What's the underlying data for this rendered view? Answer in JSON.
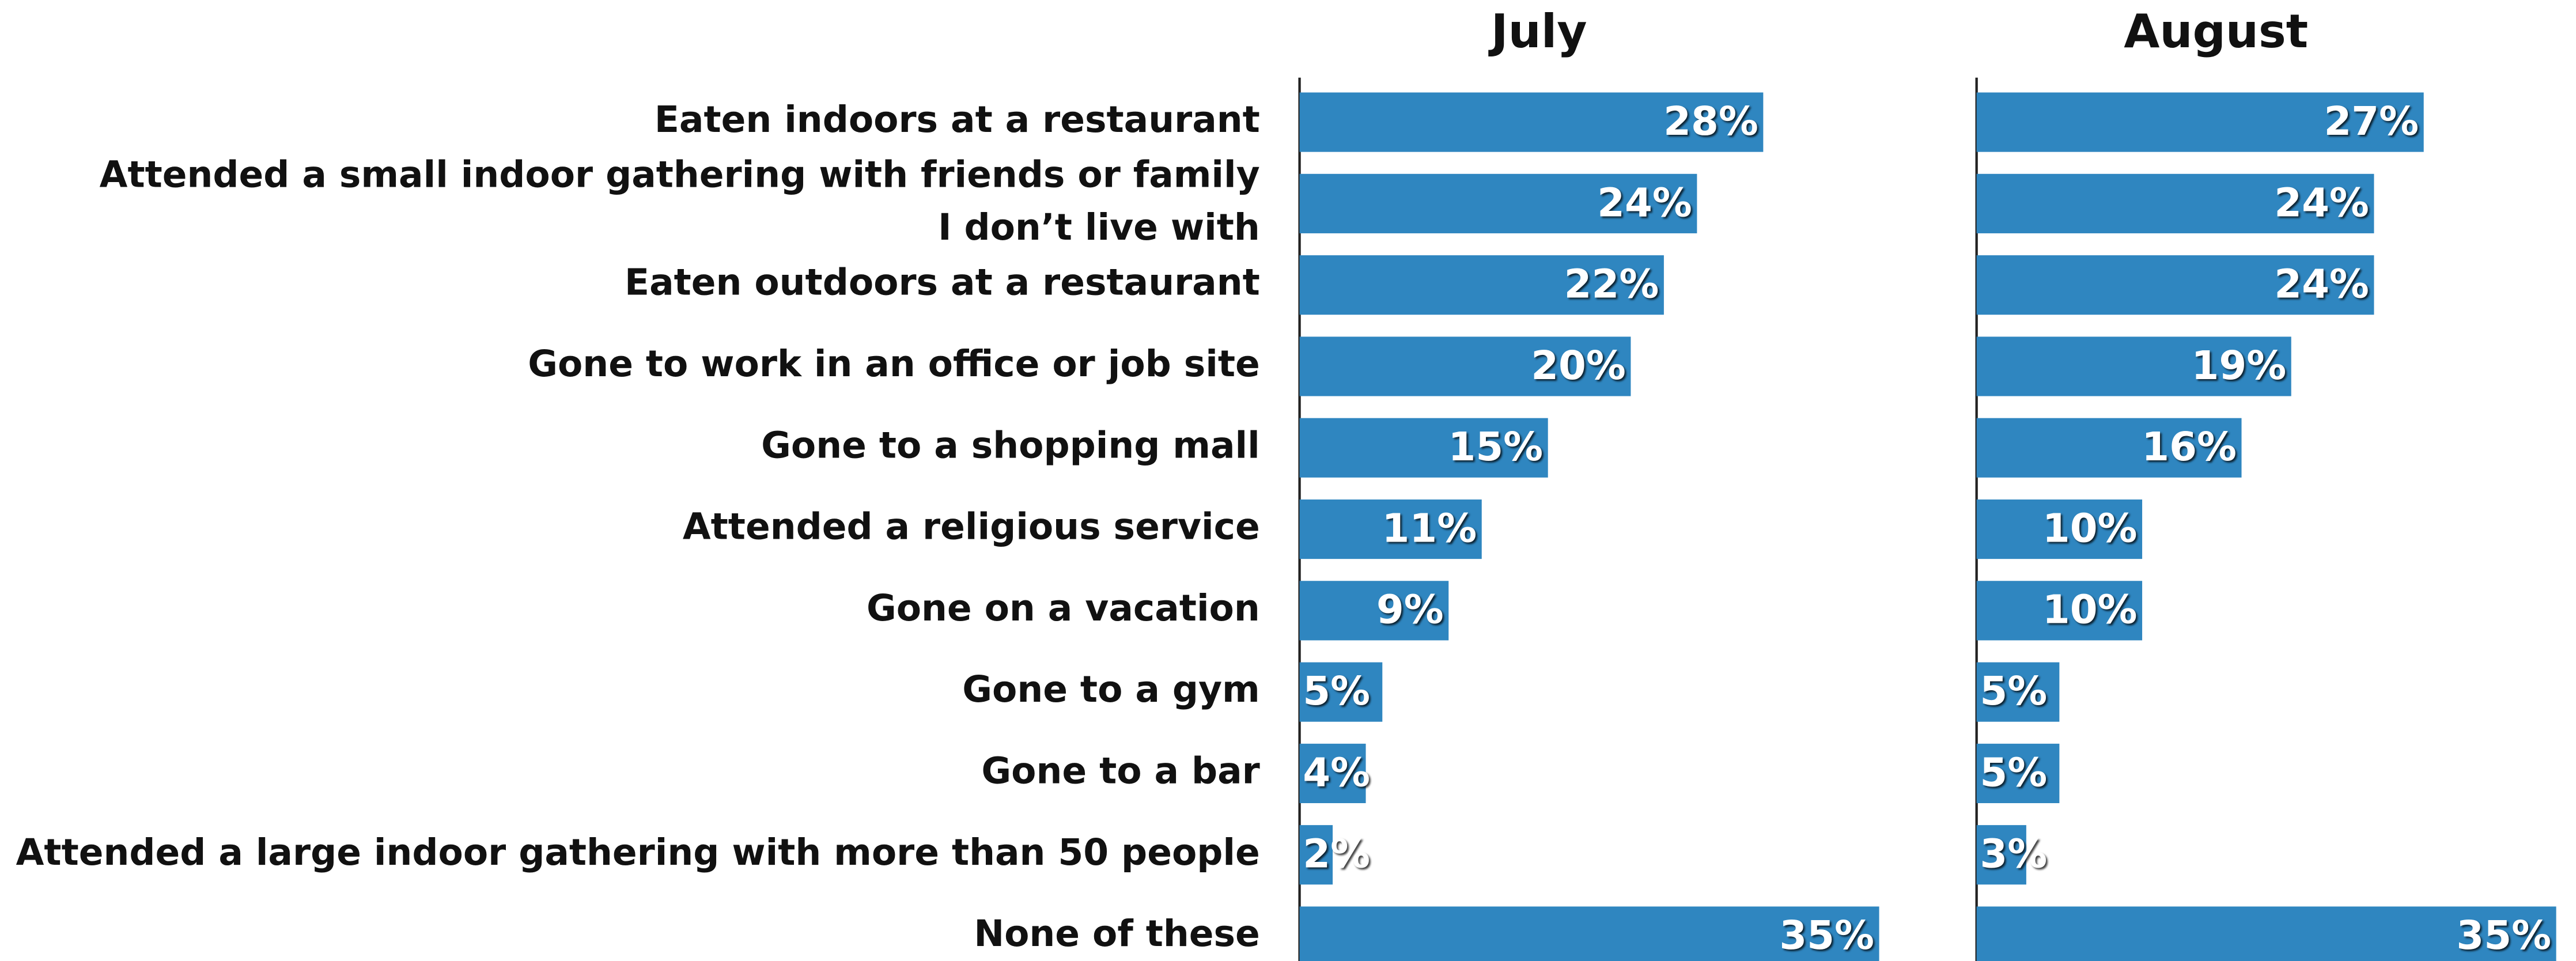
{
  "chart_data": {
    "type": "bar",
    "orientation": "horizontal",
    "categories": [
      "Eaten indoors at a restaurant",
      "Attended a small indoor gathering with friends or family\nI don’t live with",
      "Eaten outdoors at a restaurant",
      "Gone to work in an office or job site",
      "Gone to a shopping mall",
      "Attended a religious service",
      "Gone on a vacation",
      "Gone to a gym",
      "Gone to a bar",
      "Attended a large indoor gathering with more than 50 people",
      "None of these"
    ],
    "series": [
      {
        "name": "July",
        "color": "#2f86c0",
        "values": [
          28,
          24,
          22,
          20,
          15,
          11,
          9,
          5,
          4,
          2,
          35
        ],
        "value_labels": [
          "28%",
          "24%",
          "22%",
          "20%",
          "15%",
          "11%",
          "9%",
          "5%",
          "4%",
          "2%",
          "35%"
        ]
      },
      {
        "name": "August",
        "color": "#2f86c0",
        "values": [
          27,
          24,
          24,
          19,
          16,
          10,
          10,
          5,
          5,
          3,
          35
        ],
        "value_labels": [
          "27%",
          "24%",
          "24%",
          "19%",
          "16%",
          "10%",
          "10%",
          "5%",
          "5%",
          "3%",
          "35%"
        ]
      }
    ]
  }
}
